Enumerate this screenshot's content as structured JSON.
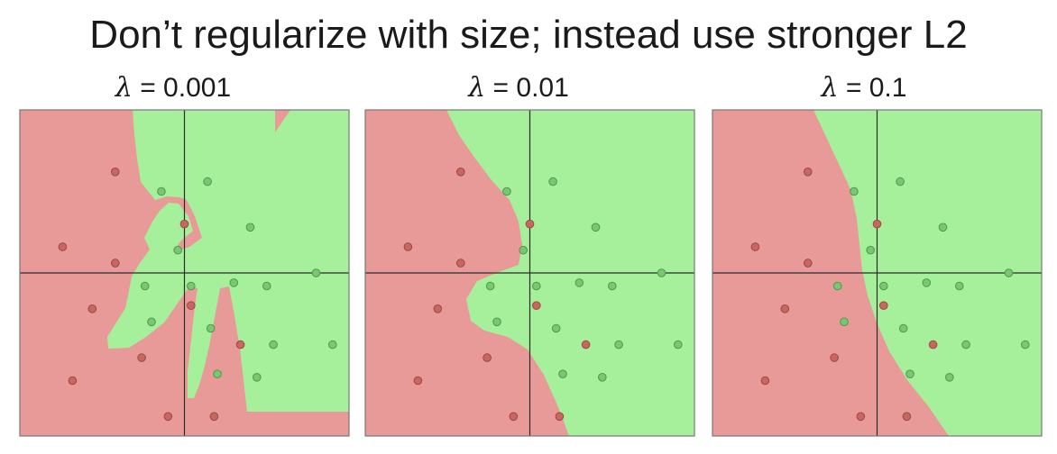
{
  "title": "Don’t regularize with size; instead use stronger L2",
  "chart_data": [
    {
      "type": "scatter",
      "title": "λ = 0.001",
      "lambda_symbol": "λ",
      "lambda_value": "= 0.001",
      "xlim": [
        -5,
        5
      ],
      "ylim": [
        -5,
        5
      ],
      "grid": false,
      "class_colors": {
        "red": "#e89a98",
        "green": "#a7f09b"
      },
      "points": [
        {
          "x": -2.1,
          "y": 3.1,
          "label": "red"
        },
        {
          "x": -3.7,
          "y": 0.8,
          "label": "red"
        },
        {
          "x": -2.1,
          "y": 0.3,
          "label": "red"
        },
        {
          "x": 0.0,
          "y": 1.5,
          "label": "red"
        },
        {
          "x": -2.8,
          "y": -1.1,
          "label": "red"
        },
        {
          "x": 0.2,
          "y": -1.0,
          "label": "red"
        },
        {
          "x": -1.3,
          "y": -2.6,
          "label": "red"
        },
        {
          "x": -3.4,
          "y": -3.3,
          "label": "red"
        },
        {
          "x": 1.7,
          "y": -2.2,
          "label": "red"
        },
        {
          "x": -0.5,
          "y": -4.4,
          "label": "red"
        },
        {
          "x": 0.9,
          "y": -4.4,
          "label": "red"
        },
        {
          "x": -0.7,
          "y": 2.5,
          "label": "green"
        },
        {
          "x": 0.7,
          "y": 2.8,
          "label": "green"
        },
        {
          "x": 2.0,
          "y": 1.4,
          "label": "green"
        },
        {
          "x": -0.2,
          "y": 0.7,
          "label": "green"
        },
        {
          "x": 4.0,
          "y": 0.0,
          "label": "green"
        },
        {
          "x": -1.2,
          "y": -0.4,
          "label": "green"
        },
        {
          "x": 0.2,
          "y": -0.4,
          "label": "green"
        },
        {
          "x": 1.5,
          "y": -0.3,
          "label": "green"
        },
        {
          "x": 2.5,
          "y": -0.4,
          "label": "green"
        },
        {
          "x": -1.0,
          "y": -1.5,
          "label": "green"
        },
        {
          "x": 0.8,
          "y": -1.7,
          "label": "green"
        },
        {
          "x": 2.7,
          "y": -2.2,
          "label": "green"
        },
        {
          "x": 4.5,
          "y": -2.2,
          "label": "green"
        },
        {
          "x": 1.0,
          "y": -3.1,
          "label": "green"
        },
        {
          "x": 2.2,
          "y": -3.2,
          "label": "green"
        }
      ]
    },
    {
      "type": "scatter",
      "title": "λ = 0.01",
      "lambda_symbol": "λ",
      "lambda_value": "= 0.01",
      "xlim": [
        -5,
        5
      ],
      "ylim": [
        -5,
        5
      ],
      "grid": false,
      "class_colors": {
        "red": "#e89a98",
        "green": "#a7f09b"
      },
      "points": [
        {
          "x": -2.1,
          "y": 3.1,
          "label": "red"
        },
        {
          "x": -3.7,
          "y": 0.8,
          "label": "red"
        },
        {
          "x": -2.1,
          "y": 0.3,
          "label": "red"
        },
        {
          "x": 0.0,
          "y": 1.5,
          "label": "red"
        },
        {
          "x": -2.8,
          "y": -1.1,
          "label": "red"
        },
        {
          "x": 0.2,
          "y": -1.0,
          "label": "red"
        },
        {
          "x": -1.3,
          "y": -2.6,
          "label": "red"
        },
        {
          "x": -3.4,
          "y": -3.3,
          "label": "red"
        },
        {
          "x": 1.7,
          "y": -2.2,
          "label": "red"
        },
        {
          "x": -0.5,
          "y": -4.4,
          "label": "red"
        },
        {
          "x": 0.9,
          "y": -4.4,
          "label": "red"
        },
        {
          "x": -0.7,
          "y": 2.5,
          "label": "green"
        },
        {
          "x": 0.7,
          "y": 2.8,
          "label": "green"
        },
        {
          "x": 2.0,
          "y": 1.4,
          "label": "green"
        },
        {
          "x": -0.2,
          "y": 0.7,
          "label": "green"
        },
        {
          "x": 4.0,
          "y": 0.0,
          "label": "green"
        },
        {
          "x": -1.2,
          "y": -0.4,
          "label": "green"
        },
        {
          "x": 0.2,
          "y": -0.4,
          "label": "green"
        },
        {
          "x": 1.5,
          "y": -0.3,
          "label": "green"
        },
        {
          "x": 2.5,
          "y": -0.4,
          "label": "green"
        },
        {
          "x": -1.0,
          "y": -1.5,
          "label": "green"
        },
        {
          "x": 0.8,
          "y": -1.7,
          "label": "green"
        },
        {
          "x": 2.7,
          "y": -2.2,
          "label": "green"
        },
        {
          "x": 4.5,
          "y": -2.2,
          "label": "green"
        },
        {
          "x": 1.0,
          "y": -3.1,
          "label": "green"
        },
        {
          "x": 2.2,
          "y": -3.2,
          "label": "green"
        }
      ]
    },
    {
      "type": "scatter",
      "title": "λ = 0.1",
      "lambda_symbol": "λ",
      "lambda_value": "= 0.1",
      "xlim": [
        -5,
        5
      ],
      "ylim": [
        -5,
        5
      ],
      "grid": false,
      "class_colors": {
        "red": "#e89a98",
        "green": "#a7f09b"
      },
      "points": [
        {
          "x": -2.1,
          "y": 3.1,
          "label": "red"
        },
        {
          "x": -3.7,
          "y": 0.8,
          "label": "red"
        },
        {
          "x": -2.1,
          "y": 0.3,
          "label": "red"
        },
        {
          "x": 0.0,
          "y": 1.5,
          "label": "red"
        },
        {
          "x": -2.8,
          "y": -1.1,
          "label": "red"
        },
        {
          "x": 0.2,
          "y": -1.0,
          "label": "red"
        },
        {
          "x": -1.3,
          "y": -2.6,
          "label": "red"
        },
        {
          "x": -3.4,
          "y": -3.3,
          "label": "red"
        },
        {
          "x": 1.7,
          "y": -2.2,
          "label": "red"
        },
        {
          "x": -0.5,
          "y": -4.4,
          "label": "red"
        },
        {
          "x": 0.9,
          "y": -4.4,
          "label": "red"
        },
        {
          "x": -0.7,
          "y": 2.5,
          "label": "green"
        },
        {
          "x": 0.7,
          "y": 2.8,
          "label": "green"
        },
        {
          "x": 2.0,
          "y": 1.4,
          "label": "green"
        },
        {
          "x": -0.2,
          "y": 0.7,
          "label": "green"
        },
        {
          "x": 4.0,
          "y": 0.0,
          "label": "green"
        },
        {
          "x": -1.2,
          "y": -0.4,
          "label": "green"
        },
        {
          "x": 0.2,
          "y": -0.4,
          "label": "green"
        },
        {
          "x": 1.5,
          "y": -0.3,
          "label": "green"
        },
        {
          "x": 2.5,
          "y": -0.4,
          "label": "green"
        },
        {
          "x": -1.0,
          "y": -1.5,
          "label": "green"
        },
        {
          "x": 0.8,
          "y": -1.7,
          "label": "green"
        },
        {
          "x": 2.7,
          "y": -2.2,
          "label": "green"
        },
        {
          "x": 4.5,
          "y": -2.2,
          "label": "green"
        },
        {
          "x": 1.0,
          "y": -3.1,
          "label": "green"
        },
        {
          "x": 2.2,
          "y": -3.2,
          "label": "green"
        }
      ]
    }
  ]
}
